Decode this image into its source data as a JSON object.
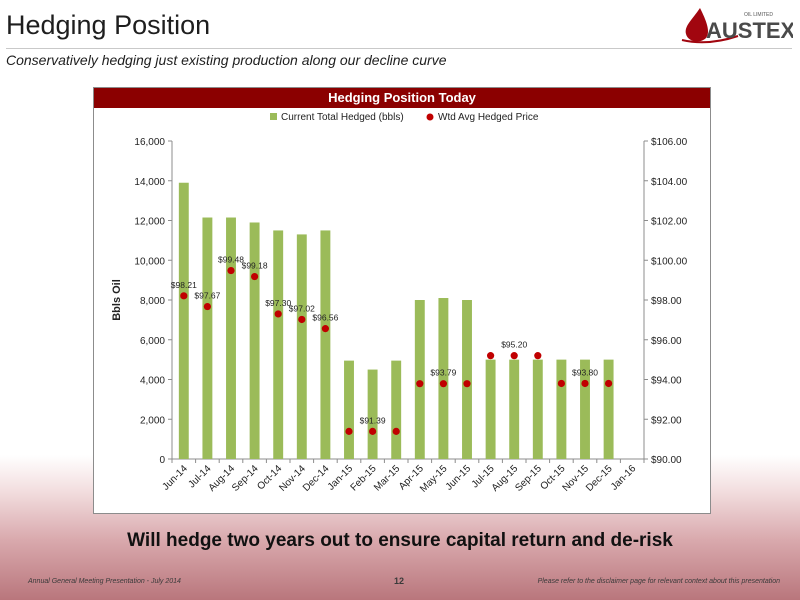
{
  "slide": {
    "title": "Hedging Position",
    "subtitle": "Conservatively hedging just existing production along our decline curve",
    "bottom_text": "Will hedge two years out to ensure capital return and de-risk",
    "footer_left": "Annual General Meeting Presentation - July 2014",
    "page_number": "12",
    "footer_right": "Please refer to the disclaimer page for relevant context about this presentation",
    "logo": {
      "text": "AUSTEX",
      "small_text": "OIL LIMITED"
    }
  },
  "chart_data": {
    "type": "bar",
    "title": "Hedging Position Today",
    "categories": [
      "Jun-14",
      "Jul-14",
      "Aug-14",
      "Sep-14",
      "Oct-14",
      "Nov-14",
      "Dec-14",
      "Jan-15",
      "Feb-15",
      "Mar-15",
      "Apr-15",
      "May-15",
      "Jun-15",
      "Jul-15",
      "Aug-15",
      "Sep-15",
      "Oct-15",
      "Nov-15",
      "Dec-15",
      "Jan-16"
    ],
    "ylabel": "Bbls Oil",
    "ylim": [
      0,
      16000
    ],
    "yticks": [
      "0",
      "2,000",
      "4,000",
      "6,000",
      "8,000",
      "10,000",
      "12,000",
      "14,000",
      "16,000"
    ],
    "y2lim": [
      90,
      106
    ],
    "y2ticks": [
      "$90.00",
      "$92.00",
      "$94.00",
      "$96.00",
      "$98.00",
      "$100.00",
      "$102.00",
      "$104.00",
      "$106.00"
    ],
    "legend_position": "top",
    "grid": false,
    "colors": {
      "bar": "#9bbb59",
      "marker": "#c00000",
      "header": "#8b0000"
    },
    "series": [
      {
        "name": "Current Total Hedged (bbls)",
        "type": "bar",
        "axis": "left",
        "values": [
          13900,
          12150,
          12150,
          11900,
          11500,
          11300,
          11500,
          4950,
          4500,
          4950,
          8000,
          8100,
          8000,
          5000,
          5000,
          5000,
          5000,
          5000,
          5000,
          null
        ]
      },
      {
        "name": "Wtd Avg Hedged Price",
        "type": "scatter",
        "axis": "right",
        "values": [
          98.21,
          97.67,
          99.48,
          99.18,
          97.3,
          97.02,
          96.56,
          91.39,
          91.39,
          91.39,
          93.79,
          93.79,
          93.79,
          95.2,
          95.2,
          95.2,
          93.8,
          93.8,
          93.8,
          null
        ]
      }
    ],
    "data_labels": [
      {
        "index": 0,
        "text": "$98.21"
      },
      {
        "index": 1,
        "text": "$97.67"
      },
      {
        "index": 2,
        "text": "$99.48"
      },
      {
        "index": 3,
        "text": "$99.18"
      },
      {
        "index": 4,
        "text": "$97.30"
      },
      {
        "index": 5,
        "text": "$97.02"
      },
      {
        "index": 6,
        "text": "$96.56"
      },
      {
        "index": 8,
        "text": "$91.39"
      },
      {
        "index": 11,
        "text": "$93.79"
      },
      {
        "index": 14,
        "text": "$95.20"
      },
      {
        "index": 17,
        "text": "$93.80"
      }
    ]
  }
}
